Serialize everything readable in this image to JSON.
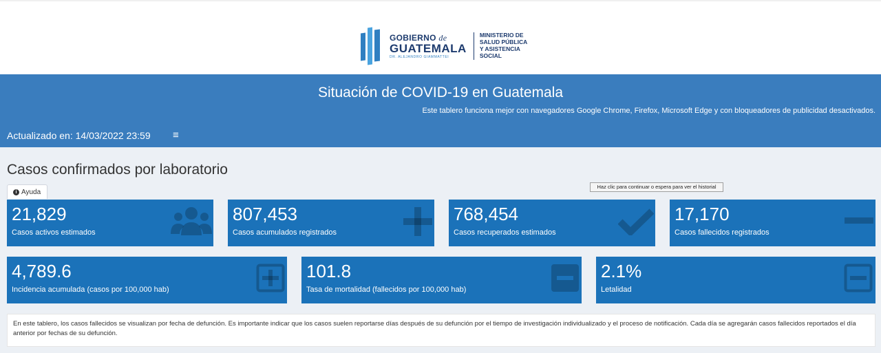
{
  "header": {
    "logo_line1": "GOBIERNO",
    "logo_de": "de",
    "logo_line2": "GUATEMALA",
    "logo_line3": "DR. ALEJANDRO GIAMMATTEI",
    "ministry_line1": "MINISTERIO DE",
    "ministry_line2": "SALUD PÚBLICA",
    "ministry_line3": "Y ASISTENCIA",
    "ministry_line4": "SOCIAL"
  },
  "banner": {
    "title": "Situación de COVID-19 en Guatemala",
    "subtitle": "Este tablero funciona mejor con navegadores Google Chrome, Firefox, Microsoft Edge y con bloqueadores de publicidad desactivados.",
    "updated": "Actualizado en: 14/03/2022 23:59",
    "menu_icon": "≡"
  },
  "section": {
    "title": "Casos confirmados por laboratorio",
    "help_label": "Ayuda",
    "help_icon": "i"
  },
  "tooltip": {
    "text": "Haz clic para continuar o espera para ver el historial"
  },
  "cards_row1": [
    {
      "value": "21,829",
      "label": "Casos activos estimados",
      "icon": "users-icon"
    },
    {
      "value": "807,453",
      "label": "Casos acumulados registrados",
      "icon": "plus-icon"
    },
    {
      "value": "768,454",
      "label": "Casos recuperados estimados",
      "icon": "check-icon"
    },
    {
      "value": "17,170",
      "label": "Casos fallecidos registrados",
      "icon": "minus-icon"
    }
  ],
  "cards_row2": [
    {
      "value": "4,789.6",
      "label": "Incidencia acumulada (casos por 100,000 hab)",
      "icon": "plus-square-icon"
    },
    {
      "value": "101.8",
      "label": "Tasa de mortalidad (fallecidos por 100,000 hab)",
      "icon": "minus-square-icon"
    },
    {
      "value": "2.1%",
      "label": "Letalidad",
      "icon": "minus-square-outline-icon"
    }
  ],
  "note": {
    "text": "En este tablero, los casos fallecidos se visualizan por fecha de defunción. Es importante indicar que los casos suelen reportarse días después de su defunción por el tiempo de investigación individualizado y el proceso de notificación. Cada día se agregarán casos fallecidos reportados el día anterior por fechas de su defunción."
  },
  "colors": {
    "banner": "#3a7dbe",
    "card": "#1b72b9",
    "background": "#ecf0f5"
  }
}
